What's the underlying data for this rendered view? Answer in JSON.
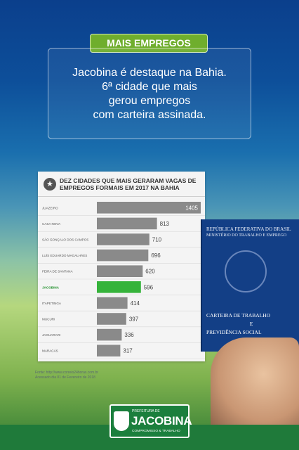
{
  "badge": "MAIS EMPREGOS",
  "headline": [
    "Jacobina é destaque na Bahia.",
    "6ª cidade que mais",
    "gerou empregos",
    "com carteira assinada."
  ],
  "chart_data": {
    "type": "bar",
    "title": "DEZ CIDADES QUE MAIS GERARAM VAGAS DE EMPREGOS FORMAIS EM 2017 NA BAHIA",
    "categories": [
      "JUAZEIRO",
      "CASA NOVA",
      "SÃO GONÇALO DOS CAMPOS",
      "LUÍS EDUARDO MAGALHÃES",
      "FEIRA DE SANTANA",
      "JACOBINA",
      "ITAPETINGA",
      "MUCURI",
      "JAGUARARI",
      "MARACÁS"
    ],
    "values": [
      1405,
      813,
      710,
      696,
      620,
      596,
      414,
      397,
      336,
      317
    ],
    "highlight": "JACOBINA",
    "colors": {
      "bar": "#8a8a8a",
      "highlight": "#35b33a"
    }
  },
  "source": [
    "Fonte: http://www.correio24horas.com.br",
    "Acessado dia 01 de Fevereiro de 2018"
  ],
  "wallet": {
    "line1": "REPÚBLICA FEDERATIVA DO BRASIL",
    "line2": "MINISTÉRIO DO TRABALHO E EMPREGO",
    "line3": "CARTEIRA DE TRABALHO",
    "line4": "E",
    "line5": "PREVIDÊNCIA SOCIAL"
  },
  "logo": {
    "small": "PREFEITURA DE",
    "name": "JACOBINA",
    "tagline": "COMPROMISSO & TRABALHO"
  }
}
